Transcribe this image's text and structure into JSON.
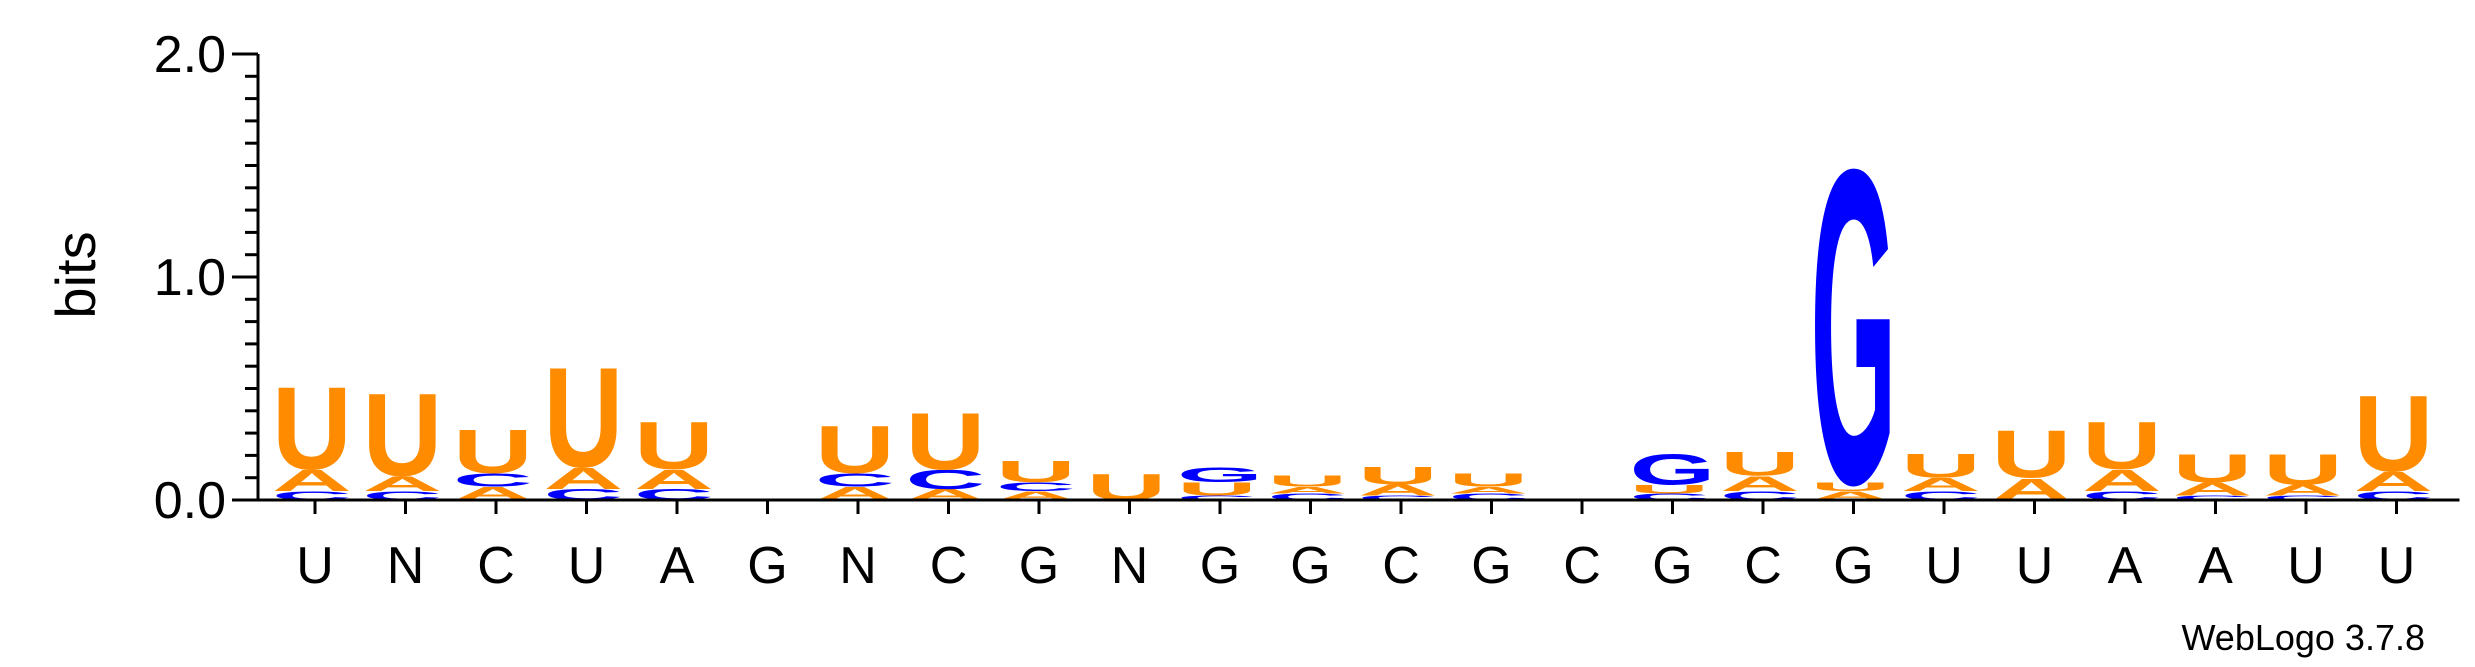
{
  "chart_data": {
    "type": "sequence-logo",
    "ylabel": "bits",
    "ylim": [
      0,
      2.0
    ],
    "yticks": [
      "0.0",
      "1.0",
      "2.0"
    ],
    "colors": {
      "U": "#FF8C00",
      "A": "#FF8C00",
      "G": "#0000FF",
      "C": "#0000FF"
    },
    "positions": [
      {
        "label": "U",
        "letters": [
          {
            "l": "C",
            "h": 0.04
          },
          {
            "l": "A",
            "h": 0.1
          },
          {
            "l": "U",
            "h": 0.38
          }
        ]
      },
      {
        "label": "N",
        "letters": [
          {
            "l": "C",
            "h": 0.04
          },
          {
            "l": "A",
            "h": 0.07
          },
          {
            "l": "U",
            "h": 0.38
          }
        ]
      },
      {
        "label": "C",
        "letters": [
          {
            "l": "A",
            "h": 0.06
          },
          {
            "l": "C",
            "h": 0.06
          },
          {
            "l": "U",
            "h": 0.2
          }
        ]
      },
      {
        "label": "U",
        "letters": [
          {
            "l": "C",
            "h": 0.05
          },
          {
            "l": "A",
            "h": 0.1
          },
          {
            "l": "U",
            "h": 0.46
          }
        ]
      },
      {
        "label": "A",
        "letters": [
          {
            "l": "C",
            "h": 0.05
          },
          {
            "l": "A",
            "h": 0.09
          },
          {
            "l": "U",
            "h": 0.22
          }
        ]
      },
      {
        "label": "G",
        "letters": []
      },
      {
        "label": "N",
        "letters": [
          {
            "l": "A",
            "h": 0.06
          },
          {
            "l": "C",
            "h": 0.06
          },
          {
            "l": "U",
            "h": 0.22
          }
        ]
      },
      {
        "label": "C",
        "letters": [
          {
            "l": "A",
            "h": 0.05
          },
          {
            "l": "C",
            "h": 0.09
          },
          {
            "l": "U",
            "h": 0.26
          }
        ]
      },
      {
        "label": "G",
        "letters": [
          {
            "l": "A",
            "h": 0.04
          },
          {
            "l": "C",
            "h": 0.04
          },
          {
            "l": "U",
            "h": 0.1
          }
        ]
      },
      {
        "label": "N",
        "letters": [
          {
            "l": "U",
            "h": 0.12
          }
        ]
      },
      {
        "label": "G",
        "letters": [
          {
            "l": "C",
            "h": 0.02
          },
          {
            "l": "U",
            "h": 0.06
          },
          {
            "l": "G",
            "h": 0.07
          }
        ]
      },
      {
        "label": "G",
        "letters": [
          {
            "l": "C",
            "h": 0.03
          },
          {
            "l": "A",
            "h": 0.03
          },
          {
            "l": "U",
            "h": 0.05
          }
        ]
      },
      {
        "label": "C",
        "letters": [
          {
            "l": "C",
            "h": 0.02
          },
          {
            "l": "A",
            "h": 0.05
          },
          {
            "l": "U",
            "h": 0.08
          }
        ]
      },
      {
        "label": "G",
        "letters": [
          {
            "l": "C",
            "h": 0.03
          },
          {
            "l": "A",
            "h": 0.03
          },
          {
            "l": "U",
            "h": 0.06
          }
        ]
      },
      {
        "label": "C",
        "letters": []
      },
      {
        "label": "G",
        "letters": [
          {
            "l": "C",
            "h": 0.03
          },
          {
            "l": "U",
            "h": 0.04
          },
          {
            "l": "G",
            "h": 0.14
          }
        ]
      },
      {
        "label": "C",
        "letters": [
          {
            "l": "C",
            "h": 0.04
          },
          {
            "l": "A",
            "h": 0.07
          },
          {
            "l": "U",
            "h": 0.11
          }
        ]
      },
      {
        "label": "G",
        "letters": [
          {
            "l": "A",
            "h": 0.04
          },
          {
            "l": "U",
            "h": 0.04
          },
          {
            "l": "G",
            "h": 1.45
          }
        ]
      },
      {
        "label": "U",
        "letters": [
          {
            "l": "C",
            "h": 0.04
          },
          {
            "l": "A",
            "h": 0.06
          },
          {
            "l": "U",
            "h": 0.11
          }
        ]
      },
      {
        "label": "U",
        "letters": [
          {
            "l": "A",
            "h": 0.1
          },
          {
            "l": "U",
            "h": 0.22
          }
        ]
      },
      {
        "label": "A",
        "letters": [
          {
            "l": "C",
            "h": 0.04
          },
          {
            "l": "A",
            "h": 0.1
          },
          {
            "l": "U",
            "h": 0.22
          }
        ]
      },
      {
        "label": "A",
        "letters": [
          {
            "l": "C",
            "h": 0.02
          },
          {
            "l": "A",
            "h": 0.06
          },
          {
            "l": "U",
            "h": 0.13
          }
        ]
      },
      {
        "label": "U",
        "letters": [
          {
            "l": "C",
            "h": 0.02
          },
          {
            "l": "A",
            "h": 0.05
          },
          {
            "l": "U",
            "h": 0.14
          }
        ]
      },
      {
        "label": "U",
        "letters": [
          {
            "l": "C",
            "h": 0.04
          },
          {
            "l": "A",
            "h": 0.09
          },
          {
            "l": "U",
            "h": 0.35
          }
        ]
      }
    ],
    "credit": "WebLogo 3.7.8"
  }
}
